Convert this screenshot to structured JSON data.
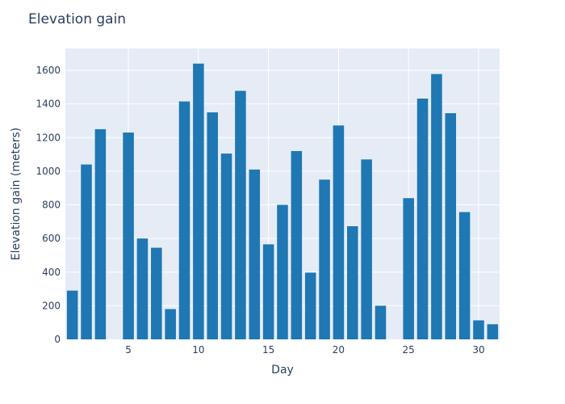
{
  "chart_data": {
    "type": "bar",
    "title": "Elevation gain",
    "xlabel": "Day",
    "ylabel": "Elevation gain (meters)",
    "x": [
      1,
      2,
      3,
      4,
      5,
      6,
      7,
      8,
      9,
      10,
      11,
      12,
      13,
      14,
      15,
      16,
      17,
      18,
      19,
      20,
      21,
      22,
      23,
      24,
      25,
      26,
      27,
      28,
      29,
      30,
      31
    ],
    "values": [
      290,
      1040,
      1250,
      0,
      1230,
      600,
      545,
      180,
      1415,
      1640,
      1350,
      1105,
      1478,
      1010,
      565,
      800,
      1120,
      397,
      950,
      1272,
      673,
      1070,
      200,
      0,
      840,
      1432,
      1578,
      1345,
      757,
      113,
      90
    ],
    "xticks": [
      5,
      10,
      15,
      20,
      25,
      30
    ],
    "yticks": [
      0,
      200,
      400,
      600,
      800,
      1000,
      1200,
      1400,
      1600
    ],
    "xlim": [
      0.5,
      31.5
    ],
    "ylim": [
      0,
      1730
    ],
    "bar_color": "#1f77b4",
    "plot_bg": "#e5ecf6",
    "grid": true
  }
}
